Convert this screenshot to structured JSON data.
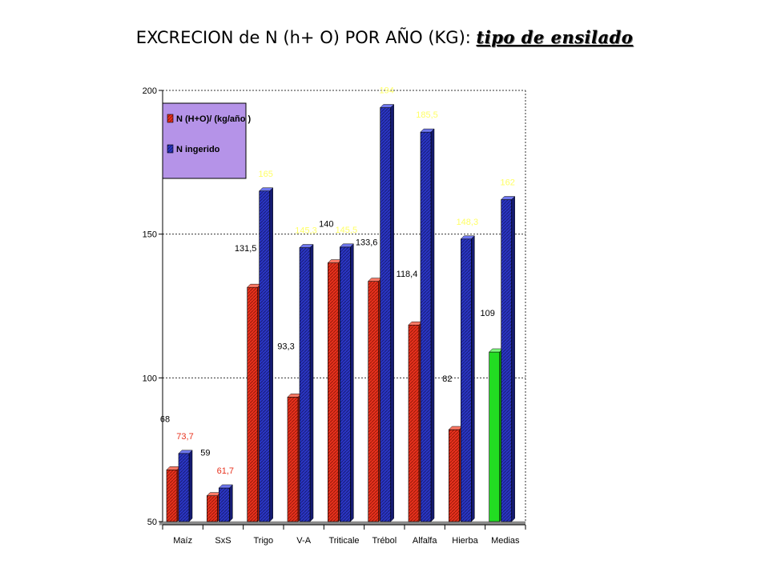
{
  "title": {
    "main": "EXCRECION de N (h+ O) POR AÑO (KG):",
    "suffix": "tipo de ensilado"
  },
  "chart_data": {
    "type": "bar",
    "categories": [
      "Maíz",
      "SxS",
      "Trigo",
      "V-A",
      "Triticale",
      "Trébol",
      "Alfalfa",
      "Hierba",
      "Medias"
    ],
    "series": [
      {
        "name": "N (H+O)/ (kg/año )",
        "values": [
          68,
          59,
          131.5,
          93.3,
          140,
          133.6,
          118.4,
          82,
          109
        ],
        "labels": [
          "68",
          "59",
          "131,5",
          "93,3",
          "140",
          "133,6",
          "118,4",
          "82",
          "109"
        ],
        "color": "#e8321e"
      },
      {
        "name": "N ingerido",
        "values": [
          73.7,
          61.7,
          165,
          145.3,
          145.5,
          194,
          185.5,
          148.3,
          162
        ],
        "labels": [
          "73,7",
          "61,7",
          "165",
          "145,3",
          "145,5",
          "194",
          "185,5",
          "148,3",
          "162"
        ],
        "color": "#2b36c4"
      }
    ],
    "highlight": {
      "category": "Medias",
      "series": 0,
      "color": "#22dd22"
    },
    "ylim": [
      50,
      200
    ],
    "yticks": [
      "50",
      "100",
      "150",
      "200"
    ],
    "grid": true,
    "legend_position": "top-left",
    "legend_bg": "#b593e8",
    "label_colors": {
      "series0_default": "#000000",
      "series1_default": "#ffff66",
      "small_values": "#e8321e"
    }
  }
}
